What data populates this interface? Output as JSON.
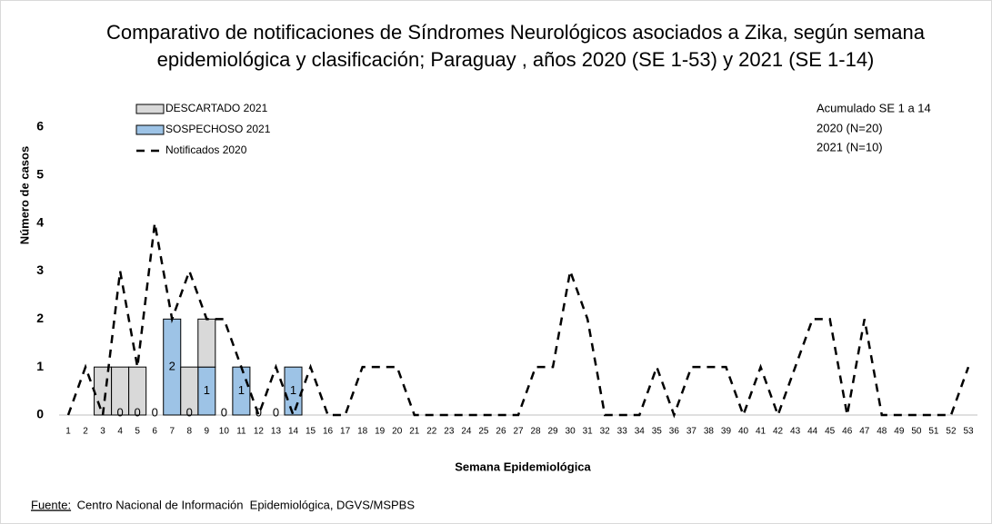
{
  "chart_data": {
    "type": "bar-line",
    "title": [
      "Comparativo de notificaciones de Síndromes Neurológicos asociados a  Zika,  según semana",
      "epidemiológica y clasificación;  Paraguay , años  2020  (SE 1-53) y 2021  (SE 1-14)"
    ],
    "x_label": "Semana Epidemiológica",
    "y_label": "Número de casos",
    "annotation": [
      "Acumulado SE 1 a 14",
      "2020 (N=20)",
      "2021 (N=10)"
    ],
    "source": {
      "label": "Fuente:",
      "text": " Centro Nacional de Información  Epidemiológica, DGVS/MSPBS"
    },
    "categories": [
      1,
      2,
      3,
      4,
      5,
      6,
      7,
      8,
      9,
      10,
      11,
      12,
      13,
      14,
      15,
      16,
      17,
      18,
      19,
      20,
      21,
      22,
      23,
      24,
      25,
      26,
      27,
      28,
      29,
      30,
      31,
      32,
      33,
      34,
      35,
      36,
      37,
      38,
      39,
      40,
      41,
      42,
      43,
      44,
      45,
      46,
      47,
      48,
      49,
      50,
      51,
      52,
      53
    ],
    "ylim": [
      0,
      6
    ],
    "yticks": [
      0,
      1,
      2,
      3,
      4,
      5,
      6
    ],
    "series": [
      {
        "name": "DESCARTADO 2021",
        "type": "bar",
        "color": "#d9d9d9",
        "values": [
          0,
          0,
          1,
          1,
          1,
          0,
          0,
          1,
          1,
          0,
          0,
          0,
          0,
          0,
          null,
          null,
          null,
          null,
          null,
          null,
          null,
          null,
          null,
          null,
          null,
          null,
          null,
          null,
          null,
          null,
          null,
          null,
          null,
          null,
          null,
          null,
          null,
          null,
          null,
          null,
          null,
          null,
          null,
          null,
          null,
          null,
          null,
          null,
          null,
          null,
          null,
          null,
          null
        ]
      },
      {
        "name": "SOSPECHOSO 2021",
        "type": "bar",
        "color": "#9dc3e6",
        "labels": true,
        "values": [
          null,
          null,
          null,
          0,
          0,
          0,
          2,
          0,
          1,
          0,
          1,
          0,
          0,
          1,
          null,
          null,
          null,
          null,
          null,
          null,
          null,
          null,
          null,
          null,
          null,
          null,
          null,
          null,
          null,
          null,
          null,
          null,
          null,
          null,
          null,
          null,
          null,
          null,
          null,
          null,
          null,
          null,
          null,
          null,
          null,
          null,
          null,
          null,
          null,
          null,
          null,
          null,
          null
        ]
      },
      {
        "name": "Notificados  2020",
        "type": "line",
        "color": "#000000",
        "values": [
          0,
          1,
          0,
          3,
          1,
          4,
          2,
          3,
          2,
          2,
          1,
          0,
          1,
          0,
          1,
          0,
          0,
          1,
          1,
          1,
          0,
          0,
          0,
          0,
          0,
          0,
          0,
          1,
          1,
          3,
          2,
          0,
          0,
          0,
          1,
          0,
          1,
          1,
          1,
          0,
          1,
          0,
          1,
          2,
          2,
          0,
          2,
          0,
          0,
          0,
          0,
          0,
          1
        ]
      }
    ]
  }
}
